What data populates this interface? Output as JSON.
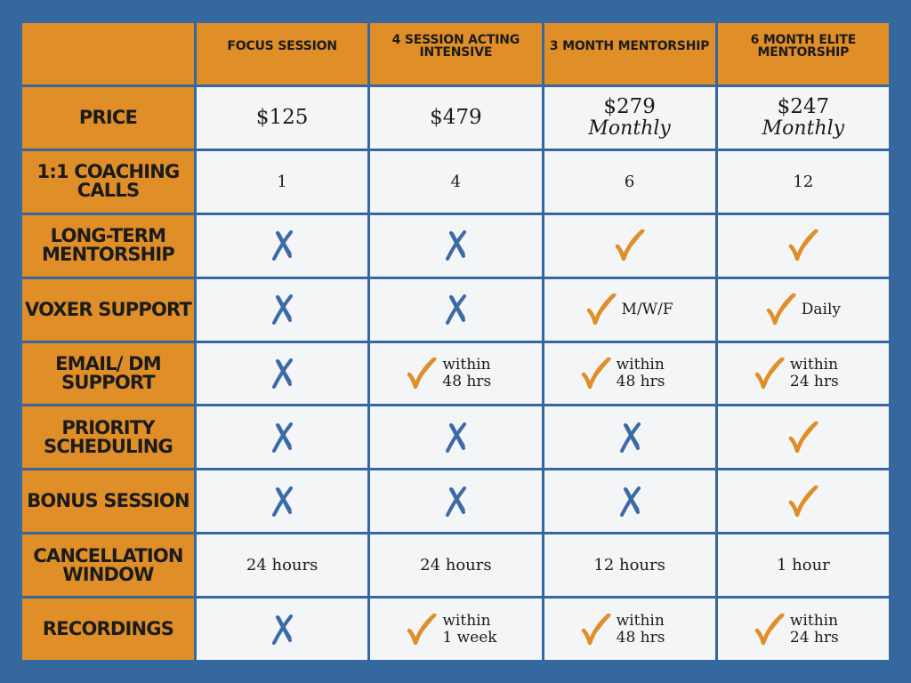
{
  "columns": [
    {
      "label": "FOCUS SESSION"
    },
    {
      "label": "4 SESSION ACTING INTENSIVE"
    },
    {
      "label": "3 MONTH MENTORSHIP"
    },
    {
      "label": "6 MONTH ELITE MENTORSHIP"
    }
  ],
  "rows": [
    {
      "label": "PRICE",
      "cells": [
        {
          "type": "price",
          "text": "$125"
        },
        {
          "type": "price",
          "text": "$479"
        },
        {
          "type": "price",
          "text": "$279",
          "sub": "Monthly"
        },
        {
          "type": "price",
          "text": "$247",
          "sub": "Monthly"
        }
      ]
    },
    {
      "label": "1:1 COACHING CALLS",
      "cells": [
        {
          "type": "text",
          "text": "1"
        },
        {
          "type": "text",
          "text": "4"
        },
        {
          "type": "text",
          "text": "6"
        },
        {
          "type": "text",
          "text": "12"
        }
      ]
    },
    {
      "label": "LONG-TERM MENTORSHIP",
      "cells": [
        {
          "type": "cross"
        },
        {
          "type": "cross"
        },
        {
          "type": "check"
        },
        {
          "type": "check"
        }
      ]
    },
    {
      "label": "VOXER SUPPORT",
      "cells": [
        {
          "type": "cross"
        },
        {
          "type": "cross"
        },
        {
          "type": "check",
          "note": "M/W/F"
        },
        {
          "type": "check",
          "note": "Daily"
        }
      ]
    },
    {
      "label": "EMAIL/ DM SUPPORT",
      "cells": [
        {
          "type": "cross"
        },
        {
          "type": "check",
          "note": "within 48 hrs"
        },
        {
          "type": "check",
          "note": "within 48 hrs"
        },
        {
          "type": "check",
          "note": "within 24 hrs"
        }
      ]
    },
    {
      "label": "PRIORITY SCHEDULING",
      "cells": [
        {
          "type": "cross"
        },
        {
          "type": "cross"
        },
        {
          "type": "cross"
        },
        {
          "type": "check"
        }
      ]
    },
    {
      "label": "BONUS SESSION",
      "cells": [
        {
          "type": "cross"
        },
        {
          "type": "cross"
        },
        {
          "type": "cross"
        },
        {
          "type": "check"
        }
      ]
    },
    {
      "label": "CANCELLATION WINDOW",
      "cells": [
        {
          "type": "text",
          "text": "24 hours"
        },
        {
          "type": "text",
          "text": "24 hours"
        },
        {
          "type": "text",
          "text": "12 hours"
        },
        {
          "type": "text",
          "text": "1 hour"
        }
      ]
    },
    {
      "label": "RECORDINGS",
      "cells": [
        {
          "type": "cross"
        },
        {
          "type": "check",
          "note": "within 1 week"
        },
        {
          "type": "check",
          "note": "within 48 hrs"
        },
        {
          "type": "check",
          "note": "within 24 hrs"
        }
      ]
    }
  ],
  "icons": {
    "check": "check-icon",
    "cross": "cross-icon"
  },
  "colors": {
    "background": "#34689f",
    "header": "#e08e27",
    "cell": "#f4f5f7",
    "check": "#e08e27",
    "cross": "#3b6aa8"
  }
}
